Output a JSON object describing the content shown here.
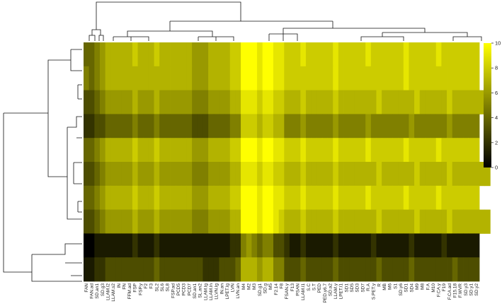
{
  "chart_data": {
    "type": "heatmap",
    "columns": [
      "FAN",
      "FAN.ad",
      "SD.an1",
      "SD.g3",
      "LLAM.l2",
      "LLAM.s2",
      "IN",
      "FN",
      "FFM.ad",
      "FSP",
      "FSP.y",
      "F2",
      "F3",
      "SL2",
      "SL6",
      "SL8",
      "FSP.ad",
      "PCD5",
      "PCD3",
      "PCD7",
      "SD.an1",
      "SL.an2",
      "LLAM.lg",
      "LLAM.ln",
      "LLVN.lg",
      "IN.an",
      "LPET.lg",
      "LVN",
      "LVN.an",
      "M4",
      "M2",
      "M3",
      "SD.g1",
      "SD.g",
      "M5",
      "F2.14",
      "F8",
      "FSAN.y",
      "F13",
      "PSAN",
      "LLAM.l1",
      "S.C",
      "S.T",
      "PED",
      "PED.y6.7",
      "SD.a2",
      "LLAM.y",
      "LPET.l1",
      "SD1",
      "SD5",
      "SD3",
      "SD7",
      "R.A",
      "S.PET.y",
      "R",
      "MB",
      "M6",
      "S1",
      "SD.y6",
      "SD1",
      "SD4",
      "M9",
      "M8",
      "F.A",
      "M10",
      "F.CA.y",
      "F19",
      "F.CA.ad",
      "F15.18",
      "F.WVR",
      "SD.y3",
      "SD.y1",
      "SD.y2"
    ],
    "values": [
      [
        4,
        4,
        5,
        6,
        7,
        7,
        7,
        7,
        7,
        8,
        7,
        7,
        7,
        8,
        7,
        7,
        7,
        7,
        7,
        7,
        6,
        6,
        6,
        7,
        7,
        7,
        7,
        8,
        8,
        10,
        10,
        10,
        9,
        10,
        10,
        9,
        9,
        8,
        8,
        8,
        9,
        8,
        8,
        8,
        8,
        8,
        9,
        8,
        8,
        8,
        8,
        8,
        9,
        8,
        8,
        8,
        8,
        8,
        8,
        9,
        8,
        8,
        8,
        8,
        8,
        9,
        8,
        8,
        8,
        8,
        8,
        8,
        8
      ],
      [
        5,
        4,
        5,
        6,
        7,
        7,
        7,
        7,
        7,
        7,
        7,
        7,
        7,
        7,
        7,
        7,
        7,
        7,
        7,
        7,
        6,
        6,
        6,
        7,
        7,
        7,
        7,
        8,
        8,
        10,
        10,
        10,
        9,
        10,
        10,
        9,
        9,
        8,
        8,
        8,
        8,
        8,
        8,
        8,
        8,
        8,
        9,
        8,
        8,
        8,
        8,
        8,
        8,
        8,
        8,
        8,
        8,
        8,
        8,
        9,
        8,
        8,
        8,
        8,
        8,
        8,
        8,
        8,
        8,
        8,
        8,
        8,
        8
      ],
      [
        3,
        3,
        4,
        5,
        6,
        6,
        6,
        6,
        6,
        7,
        6,
        6,
        6,
        7,
        6,
        6,
        6,
        6,
        6,
        6,
        5,
        5,
        5,
        6,
        6,
        6,
        6,
        7,
        7,
        9,
        9,
        9,
        8,
        9,
        9,
        8,
        8,
        7,
        7,
        7,
        8,
        7,
        7,
        7,
        7,
        7,
        8,
        7,
        7,
        7,
        7,
        7,
        7,
        7,
        8,
        7,
        7,
        7,
        7,
        7,
        7,
        8,
        7,
        7,
        7,
        7,
        7,
        8,
        7,
        7,
        7,
        7,
        7,
        7,
        7
      ],
      [
        2,
        2,
        3,
        3,
        4,
        4,
        4,
        4,
        4,
        5,
        4,
        4,
        4,
        5,
        4,
        4,
        4,
        4,
        4,
        4,
        3,
        3,
        3,
        4,
        4,
        4,
        4,
        5,
        5,
        8,
        8,
        8,
        7,
        8,
        8,
        7,
        7,
        5,
        5,
        5,
        6,
        5,
        5,
        5,
        5,
        5,
        6,
        5,
        5,
        5,
        5,
        5,
        6,
        5,
        5,
        5,
        5,
        5,
        5,
        5,
        6,
        5,
        5,
        5,
        5,
        5,
        5,
        6,
        5,
        5,
        5,
        5,
        5
      ],
      [
        4,
        4,
        5,
        6,
        7,
        7,
        7,
        7,
        7,
        8,
        7,
        7,
        7,
        8,
        7,
        7,
        7,
        7,
        7,
        7,
        6,
        6,
        6,
        7,
        7,
        7,
        7,
        8,
        8,
        10,
        10,
        10,
        9,
        10,
        10,
        9,
        9,
        8,
        8,
        8,
        9,
        8,
        8,
        8,
        8,
        8,
        9,
        8,
        8,
        8,
        8,
        8,
        9,
        8,
        8,
        8,
        8,
        8,
        8,
        9,
        8,
        8,
        8,
        8,
        8,
        9,
        8,
        8,
        8,
        8,
        8,
        8,
        8
      ],
      [
        3,
        3,
        4,
        5,
        6,
        6,
        6,
        6,
        6,
        7,
        6,
        6,
        6,
        7,
        6,
        6,
        6,
        6,
        6,
        6,
        5,
        5,
        5,
        6,
        6,
        6,
        6,
        7,
        7,
        9,
        9,
        9,
        8,
        9,
        9,
        8,
        8,
        7,
        7,
        7,
        8,
        7,
        7,
        7,
        7,
        7,
        8,
        7,
        7,
        7,
        7,
        7,
        7,
        7,
        8,
        7,
        7,
        7,
        7,
        7,
        7,
        8,
        7,
        7,
        7,
        7,
        7,
        8,
        7,
        7,
        7,
        7,
        7,
        7,
        7
      ],
      [
        4,
        4,
        5,
        6,
        7,
        7,
        7,
        7,
        7,
        8,
        7,
        7,
        7,
        8,
        7,
        7,
        7,
        7,
        7,
        7,
        6,
        6,
        6,
        7,
        7,
        7,
        7,
        8,
        8,
        10,
        10,
        10,
        9,
        10,
        10,
        9,
        9,
        8,
        8,
        8,
        9,
        8,
        8,
        8,
        8,
        8,
        9,
        8,
        8,
        8,
        8,
        8,
        9,
        8,
        8,
        8,
        8,
        8,
        8,
        9,
        8,
        8,
        8,
        8,
        8,
        9,
        8,
        8,
        8,
        8,
        8,
        8,
        8
      ],
      [
        3,
        3,
        4,
        5,
        6,
        6,
        6,
        6,
        6,
        7,
        6,
        6,
        6,
        7,
        6,
        6,
        6,
        6,
        6,
        6,
        5,
        5,
        5,
        6,
        6,
        6,
        6,
        7,
        7,
        10,
        10,
        10,
        9,
        10,
        10,
        9,
        8,
        7,
        7,
        7,
        8,
        7,
        7,
        7,
        7,
        7,
        8,
        7,
        7,
        7,
        7,
        7,
        7,
        7,
        8,
        7,
        7,
        7,
        7,
        7,
        7,
        8,
        7,
        7,
        7,
        7,
        7,
        8,
        7,
        7,
        7,
        7,
        7,
        7,
        7
      ],
      [
        0,
        0,
        1,
        1,
        1,
        1,
        1,
        1,
        1,
        2,
        1,
        1,
        1,
        2,
        1,
        1,
        1,
        1,
        1,
        1,
        1,
        1,
        1,
        1,
        1,
        1,
        1,
        2,
        2,
        5,
        6,
        5,
        4,
        5,
        5,
        3,
        3,
        2,
        1,
        1,
        2,
        1,
        1,
        1,
        1,
        1,
        2,
        1,
        1,
        1,
        1,
        1,
        1,
        2,
        1,
        1,
        1,
        1,
        1,
        1,
        2,
        1,
        1,
        1,
        1,
        1,
        2,
        1,
        1,
        1,
        1,
        1,
        1
      ],
      [
        1,
        1,
        2,
        2,
        3,
        3,
        3,
        3,
        3,
        3,
        3,
        3,
        3,
        4,
        3,
        3,
        3,
        3,
        3,
        3,
        3,
        3,
        2,
        2,
        2,
        3,
        3,
        3,
        4,
        7,
        7,
        7,
        6,
        7,
        7,
        5,
        5,
        3,
        3,
        3,
        4,
        3,
        3,
        3,
        3,
        3,
        4,
        3,
        3,
        3,
        3,
        3,
        3,
        3,
        4,
        3,
        3,
        3,
        3,
        3,
        4,
        3,
        3,
        3,
        3,
        3,
        3,
        3,
        4,
        3,
        3,
        3,
        3
      ]
    ],
    "zlim": [
      0,
      10
    ],
    "zticks": [
      0,
      2,
      4,
      6,
      8,
      10
    ],
    "colors": [
      "#000000",
      "#ffff00"
    ]
  }
}
